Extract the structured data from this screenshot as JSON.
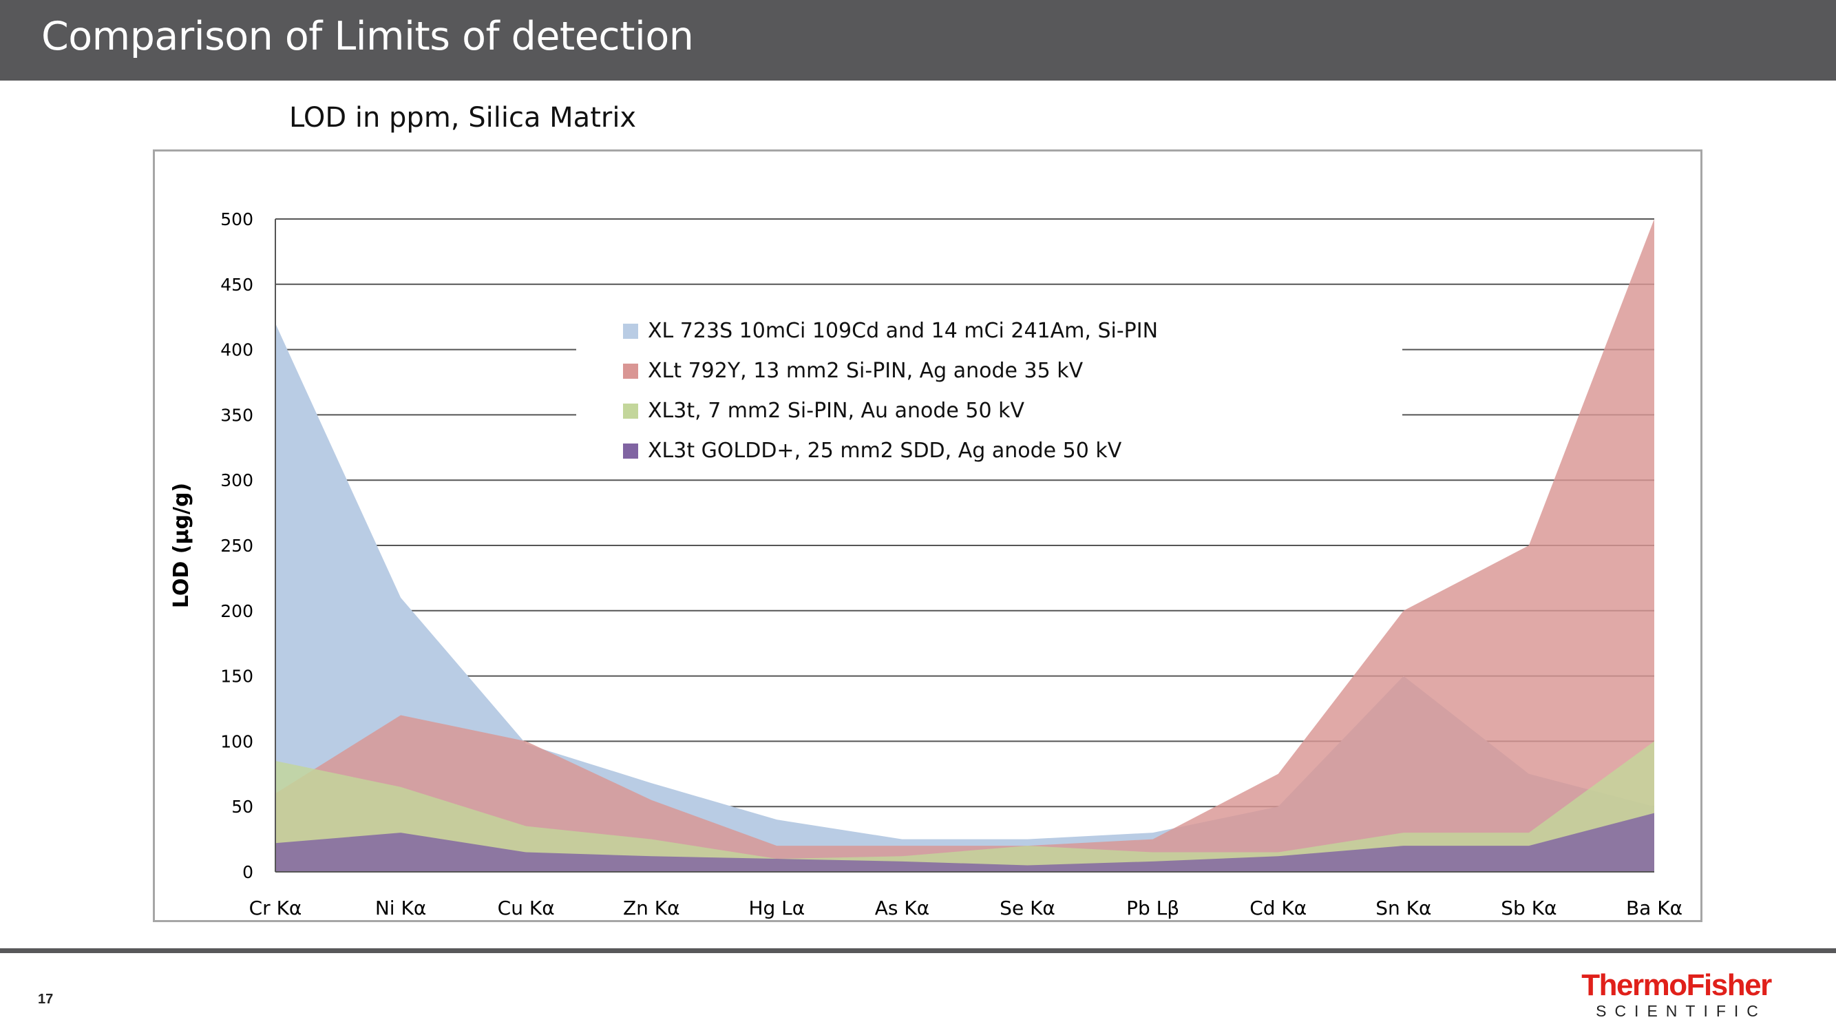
{
  "slide": {
    "title": "Comparison of Limits of detection",
    "page_number": "17",
    "logo_line1": "ThermoFisher",
    "logo_line2": "SCIENTIFIC"
  },
  "chart_data": {
    "type": "area",
    "title": "LOD in ppm, Silica Matrix",
    "xlabel": "",
    "ylabel": "LOD (µg/g)",
    "ylim": [
      0,
      500
    ],
    "yticks": [
      0,
      50,
      100,
      150,
      200,
      250,
      300,
      350,
      400,
      450,
      500
    ],
    "grid": true,
    "legend_position": "top-center",
    "categories": [
      "Cr Kα",
      "Ni Kα",
      "Cu Kα",
      "Zn Kα",
      "Hg Lα",
      "As Kα",
      "Se Kα",
      "Pb Lβ",
      "Cd Kα",
      "Sn Kα",
      "Sb Kα",
      "Ba Kα"
    ],
    "series": [
      {
        "name": "XL 723S 10mCi 109Cd and 14 mCi 241Am, Si-PIN",
        "color": "#b9cce4",
        "values": [
          420,
          210,
          98,
          68,
          40,
          25,
          25,
          30,
          50,
          150,
          75,
          50
        ]
      },
      {
        "name": "XLt 792Y, 13 mm2 Si-PIN, Ag anode 35 kV",
        "color": "#d99694",
        "values": [
          60,
          120,
          100,
          55,
          20,
          20,
          20,
          25,
          75,
          200,
          250,
          500
        ]
      },
      {
        "name": "XL3t, 7 mm2 Si-PIN, Au anode 50 kV",
        "color": "#c3d69b",
        "values": [
          85,
          65,
          35,
          25,
          10,
          12,
          20,
          15,
          15,
          30,
          30,
          100
        ]
      },
      {
        "name": "XL3t GOLDD+, 25 mm2 SDD, Ag anode 50 kV",
        "color": "#8064a2",
        "values": [
          22,
          30,
          15,
          12,
          10,
          8,
          5,
          8,
          12,
          20,
          20,
          45
        ]
      }
    ]
  }
}
